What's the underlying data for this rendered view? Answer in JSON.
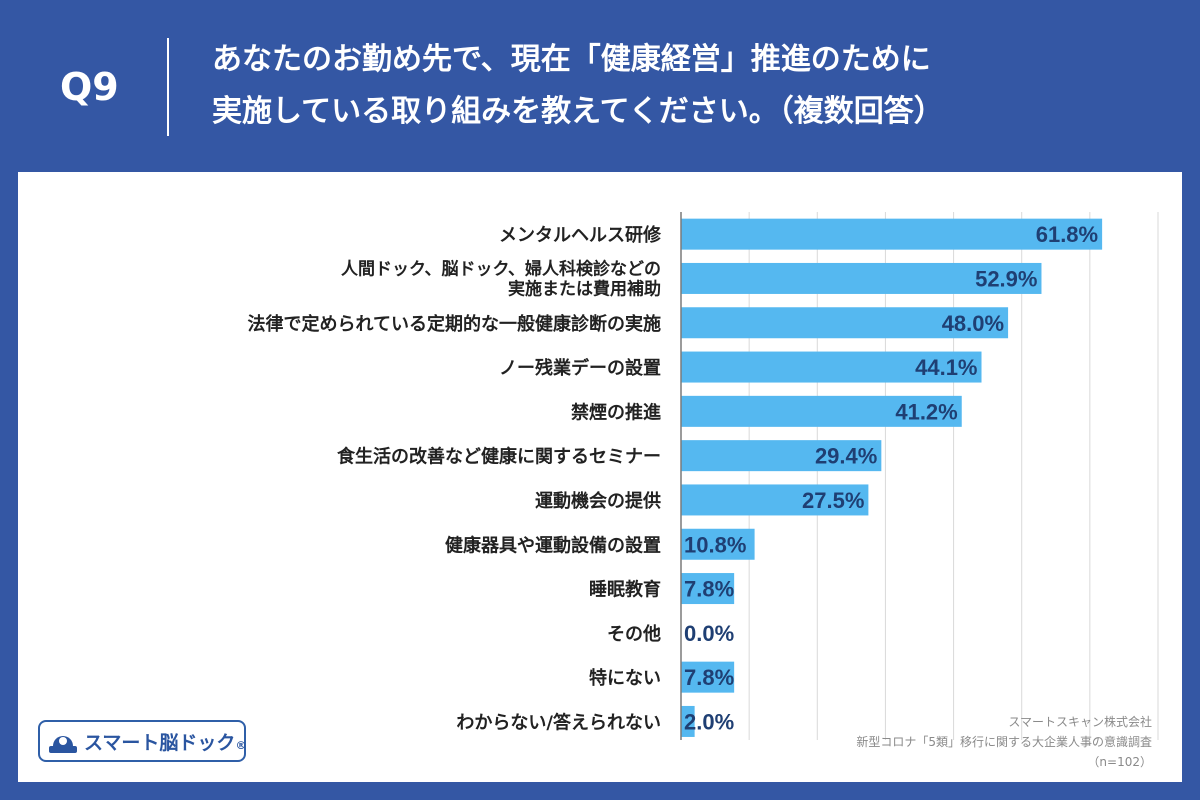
{
  "question": {
    "label": "Q9",
    "title_line1": "あなたのお勤め先で、現在「健康経営」推進のために",
    "title_line2": "実施している取り組みを教えてください。（複数回答）"
  },
  "colors": {
    "background": "#3457a4",
    "bar": "#55b8f0",
    "label_text": "#1f3f73",
    "grid": "#d9d9d9"
  },
  "chart_data": {
    "type": "bar",
    "orientation": "horizontal",
    "categories": [
      [
        "メンタルヘルス研修"
      ],
      [
        "人間ドック、脳ドック、婦人科検診などの",
        "実施または費用補助"
      ],
      [
        "法律で定められている定期的な一般健康診断の実施"
      ],
      [
        "ノー残業デーの設置"
      ],
      [
        "禁煙の推進"
      ],
      [
        "食生活の改善など健康に関するセミナー"
      ],
      [
        "運動機会の提供"
      ],
      [
        "健康器具や運動設備の設置"
      ],
      [
        "睡眠教育"
      ],
      [
        "その他"
      ],
      [
        "特にない"
      ],
      [
        "わからない/答えられない"
      ]
    ],
    "values": [
      61.8,
      52.9,
      48.0,
      44.1,
      41.2,
      29.4,
      27.5,
      10.8,
      7.8,
      0.0,
      7.8,
      2.0
    ],
    "value_labels": [
      "61.8%",
      "52.9%",
      "48.0%",
      "44.1%",
      "41.2%",
      "29.4%",
      "27.5%",
      "10.8%",
      "7.8%",
      "0.0%",
      "7.8%",
      "2.0%"
    ],
    "xlim": [
      0,
      70
    ],
    "grid": true,
    "unit": "%"
  },
  "logo": {
    "text": "スマート脳ドック",
    "registered": "®"
  },
  "credit": {
    "company": "スマートスキャン株式会社",
    "survey": "新型コロナ「5類」移行に関する大企業人事の意識調査",
    "sample": "（n=102）"
  }
}
